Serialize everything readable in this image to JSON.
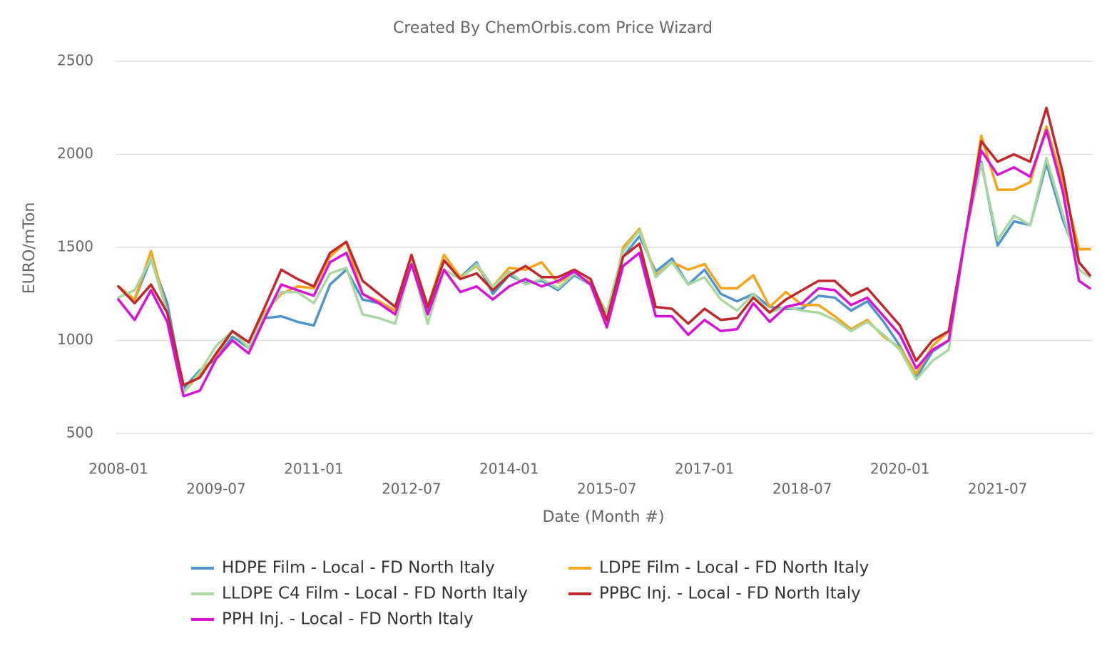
{
  "chart_data": {
    "type": "line",
    "title": "Created By ChemOrbis.com Price Wizard",
    "x_label": "Date (Month #)",
    "y_label": "EURO/mTon",
    "x": [
      "2008-01",
      "2008-04",
      "2008-07",
      "2008-10",
      "2009-01",
      "2009-04",
      "2009-07",
      "2009-10",
      "2010-01",
      "2010-04",
      "2010-07",
      "2010-10",
      "2011-01",
      "2011-04",
      "2011-07",
      "2011-10",
      "2012-01",
      "2012-04",
      "2012-07",
      "2012-10",
      "2013-01",
      "2013-04",
      "2013-07",
      "2013-10",
      "2014-01",
      "2014-04",
      "2014-07",
      "2014-10",
      "2015-01",
      "2015-04",
      "2015-07",
      "2015-10",
      "2016-01",
      "2016-04",
      "2016-07",
      "2016-10",
      "2017-01",
      "2017-04",
      "2017-07",
      "2017-10",
      "2018-01",
      "2018-04",
      "2018-07",
      "2018-10",
      "2019-01",
      "2019-04",
      "2019-07",
      "2019-10",
      "2020-01",
      "2020-04",
      "2020-07",
      "2020-10",
      "2021-01",
      "2021-04",
      "2021-07",
      "2021-10",
      "2022-01",
      "2022-04",
      "2022-07",
      "2022-10",
      "2022-12"
    ],
    "xlim": [
      "2008-01",
      "2022-12"
    ],
    "xticks": [
      "2008-01",
      "2009-07",
      "2011-01",
      "2012-07",
      "2014-01",
      "2015-07",
      "2017-01",
      "2018-07",
      "2020-01",
      "2021-07"
    ],
    "ylim": [
      500,
      2500
    ],
    "yticks": [
      500,
      1000,
      1500,
      2000,
      2500
    ],
    "grid": true,
    "legend": "bottom",
    "series": [
      {
        "name": "HDPE Film - Local - FD North Italy",
        "color": "#4f94cd",
        "values": [
          1290,
          1220,
          1440,
          1200,
          740,
          840,
          900,
          1020,
          960,
          1120,
          1130,
          1100,
          1080,
          1300,
          1380,
          1220,
          1200,
          1160,
          1430,
          1170,
          1430,
          1340,
          1420,
          1250,
          1350,
          1310,
          1320,
          1270,
          1350,
          1300,
          1150,
          1450,
          1560,
          1370,
          1440,
          1300,
          1380,
          1250,
          1210,
          1250,
          1180,
          1170,
          1170,
          1240,
          1230,
          1160,
          1210,
          1100,
          970,
          800,
          940,
          1000,
          1550,
          1960,
          1510,
          1640,
          1620,
          1950,
          1650,
          1420,
          1350
        ]
      },
      {
        "name": "LDPE Film - Local - FD North Italy",
        "color": "#f5a31a",
        "values": [
          1290,
          1220,
          1480,
          1150,
          720,
          820,
          920,
          1050,
          990,
          1150,
          1250,
          1290,
          1280,
          1450,
          1530,
          1250,
          1210,
          1160,
          1450,
          1180,
          1460,
          1340,
          1400,
          1290,
          1390,
          1380,
          1420,
          1310,
          1360,
          1310,
          1100,
          1500,
          1600,
          1350,
          1420,
          1380,
          1410,
          1280,
          1280,
          1350,
          1180,
          1260,
          1190,
          1190,
          1130,
          1060,
          1110,
          1020,
          960,
          820,
          970,
          1050,
          1550,
          2100,
          1810,
          1810,
          1850,
          2150,
          1850,
          1490,
          1490
        ]
      },
      {
        "name": "LLDPE C4 Film - Local - FD North Italy",
        "color": "#a8d8a0",
        "values": [
          1230,
          1270,
          1440,
          1150,
          720,
          830,
          970,
          1050,
          960,
          1140,
          1260,
          1260,
          1200,
          1360,
          1390,
          1140,
          1120,
          1090,
          1420,
          1090,
          1380,
          1330,
          1410,
          1290,
          1370,
          1300,
          1330,
          1280,
          1360,
          1300,
          1150,
          1480,
          1590,
          1340,
          1420,
          1300,
          1340,
          1220,
          1160,
          1250,
          1150,
          1180,
          1160,
          1150,
          1110,
          1050,
          1100,
          1030,
          950,
          790,
          890,
          950,
          1550,
          1950,
          1540,
          1670,
          1620,
          1980,
          1680,
          1380,
          1340
        ]
      },
      {
        "name": "PPBC Inj. - Local - FD North Italy",
        "color": "#c0282d",
        "values": [
          1290,
          1200,
          1300,
          1150,
          760,
          800,
          930,
          1050,
          990,
          1180,
          1380,
          1330,
          1290,
          1470,
          1530,
          1320,
          1250,
          1180,
          1460,
          1180,
          1430,
          1330,
          1360,
          1270,
          1350,
          1400,
          1340,
          1340,
          1380,
          1330,
          1110,
          1450,
          1520,
          1180,
          1170,
          1090,
          1170,
          1110,
          1120,
          1230,
          1150,
          1220,
          1270,
          1320,
          1320,
          1240,
          1280,
          1180,
          1080,
          890,
          1000,
          1050,
          1550,
          2070,
          1960,
          2000,
          1960,
          2250,
          1900,
          1420,
          1350
        ]
      },
      {
        "name": "PPH Inj. - Local - FD North Italy",
        "color": "#d613d6",
        "values": [
          1220,
          1110,
          1270,
          1100,
          700,
          730,
          900,
          1000,
          930,
          1120,
          1300,
          1270,
          1240,
          1420,
          1470,
          1250,
          1200,
          1140,
          1410,
          1140,
          1380,
          1260,
          1290,
          1220,
          1290,
          1330,
          1290,
          1320,
          1370,
          1300,
          1070,
          1400,
          1470,
          1130,
          1130,
          1030,
          1110,
          1050,
          1060,
          1200,
          1100,
          1180,
          1200,
          1280,
          1270,
          1190,
          1230,
          1130,
          1030,
          850,
          950,
          1000,
          1550,
          2020,
          1890,
          1930,
          1880,
          2130,
          1800,
          1320,
          1280
        ]
      }
    ]
  }
}
